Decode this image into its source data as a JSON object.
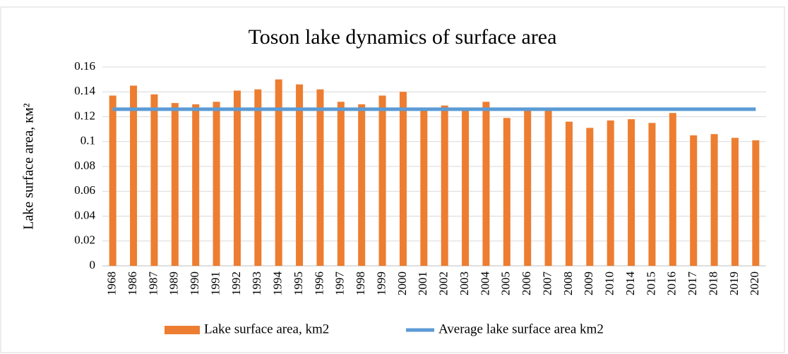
{
  "chart_data": {
    "type": "bar",
    "title": "Toson lake dynamics of surface area",
    "y_label": "Lake surface area, км²",
    "categories": [
      "1968",
      "1986",
      "1987",
      "1989",
      "1990",
      "1991",
      "1992",
      "1993",
      "1994",
      "1995",
      "1996",
      "1997",
      "1998",
      "1999",
      "2000",
      "2001",
      "2002",
      "2003",
      "2004",
      "2005",
      "2006",
      "2007",
      "2008",
      "2009",
      "2010",
      "2014",
      "2015",
      "2016",
      "2017",
      "2018",
      "2019",
      "2020"
    ],
    "series": [
      {
        "name": "Lake surface area, km2",
        "type": "bar",
        "color": "#ed7d31",
        "values": [
          0.137,
          0.145,
          0.138,
          0.131,
          0.13,
          0.132,
          0.141,
          0.142,
          0.15,
          0.146,
          0.142,
          0.132,
          0.13,
          0.137,
          0.14,
          0.126,
          0.129,
          0.127,
          0.132,
          0.119,
          0.126,
          0.126,
          0.116,
          0.111,
          0.117,
          0.118,
          0.115,
          0.123,
          0.105,
          0.106,
          0.103,
          0.101
        ]
      },
      {
        "name": "Average lake surface area km2",
        "type": "line",
        "color": "#5b9bd5",
        "values": [
          0.126,
          0.126,
          0.126,
          0.126,
          0.126,
          0.126,
          0.126,
          0.126,
          0.126,
          0.126,
          0.126,
          0.126,
          0.126,
          0.126,
          0.126,
          0.126,
          0.126,
          0.126,
          0.126,
          0.126,
          0.126,
          0.126,
          0.126,
          0.126,
          0.126,
          0.126,
          0.126,
          0.126,
          0.126,
          0.126,
          0.126,
          0.126
        ]
      }
    ],
    "ylim": [
      0,
      0.16
    ],
    "yticks": [
      0,
      0.02,
      0.04,
      0.06,
      0.08,
      0.1,
      0.12,
      0.14,
      0.16
    ],
    "grid": true,
    "legend": "bottom"
  }
}
